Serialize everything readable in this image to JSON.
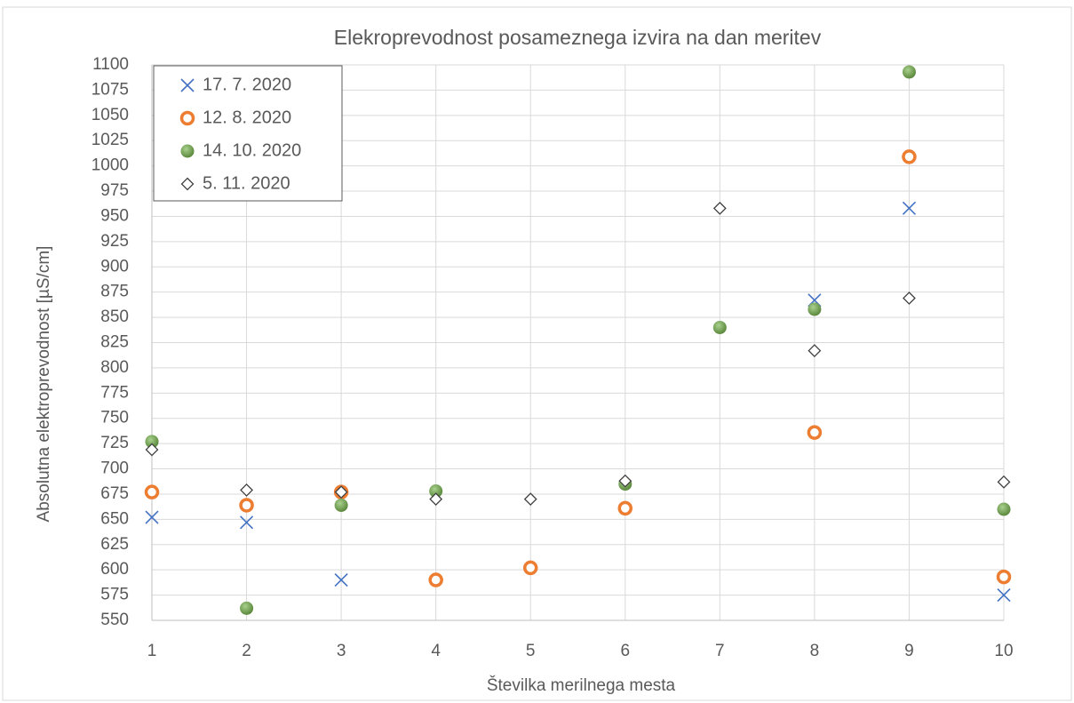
{
  "chart_data": {
    "type": "scatter",
    "title": "Elekroprevodnost posameznega izvira na dan meritev",
    "x_label": "Številka merilnega mesta",
    "y_label": "Absolutna elektroprevodnost  [µS/cm]",
    "x": [
      1,
      2,
      3,
      4,
      5,
      6,
      7,
      8,
      9,
      10
    ],
    "xlim": [
      1,
      10
    ],
    "xticks": [
      1,
      2,
      3,
      4,
      5,
      6,
      7,
      8,
      9,
      10
    ],
    "ylim": [
      550,
      1100
    ],
    "yticks": [
      550,
      575,
      600,
      625,
      650,
      675,
      700,
      725,
      750,
      775,
      800,
      825,
      850,
      875,
      900,
      925,
      950,
      975,
      1000,
      1025,
      1050,
      1075,
      1100
    ],
    "grid": true,
    "legend": "upper-left",
    "series": [
      {
        "name": "17. 7. 2020",
        "color": "#4472c4",
        "marker": "x",
        "values": [
          652,
          647,
          590,
          null,
          null,
          null,
          null,
          867,
          958,
          575
        ]
      },
      {
        "name": "12. 8. 2020",
        "color": "#ed7d31",
        "marker": "ring",
        "values": [
          677,
          664,
          677,
          590,
          602,
          661,
          null,
          736,
          1009,
          593
        ]
      },
      {
        "name": "14. 10. 2020",
        "color": "#70ad47",
        "marker": "dot",
        "values": [
          727,
          562,
          664,
          678,
          null,
          685,
          840,
          858,
          1093,
          660
        ]
      },
      {
        "name": "5. 11. 2020",
        "color": "#404040",
        "marker": "diamond",
        "values": [
          719,
          679,
          677,
          670,
          670,
          688,
          958,
          817,
          869,
          687
        ]
      }
    ]
  }
}
